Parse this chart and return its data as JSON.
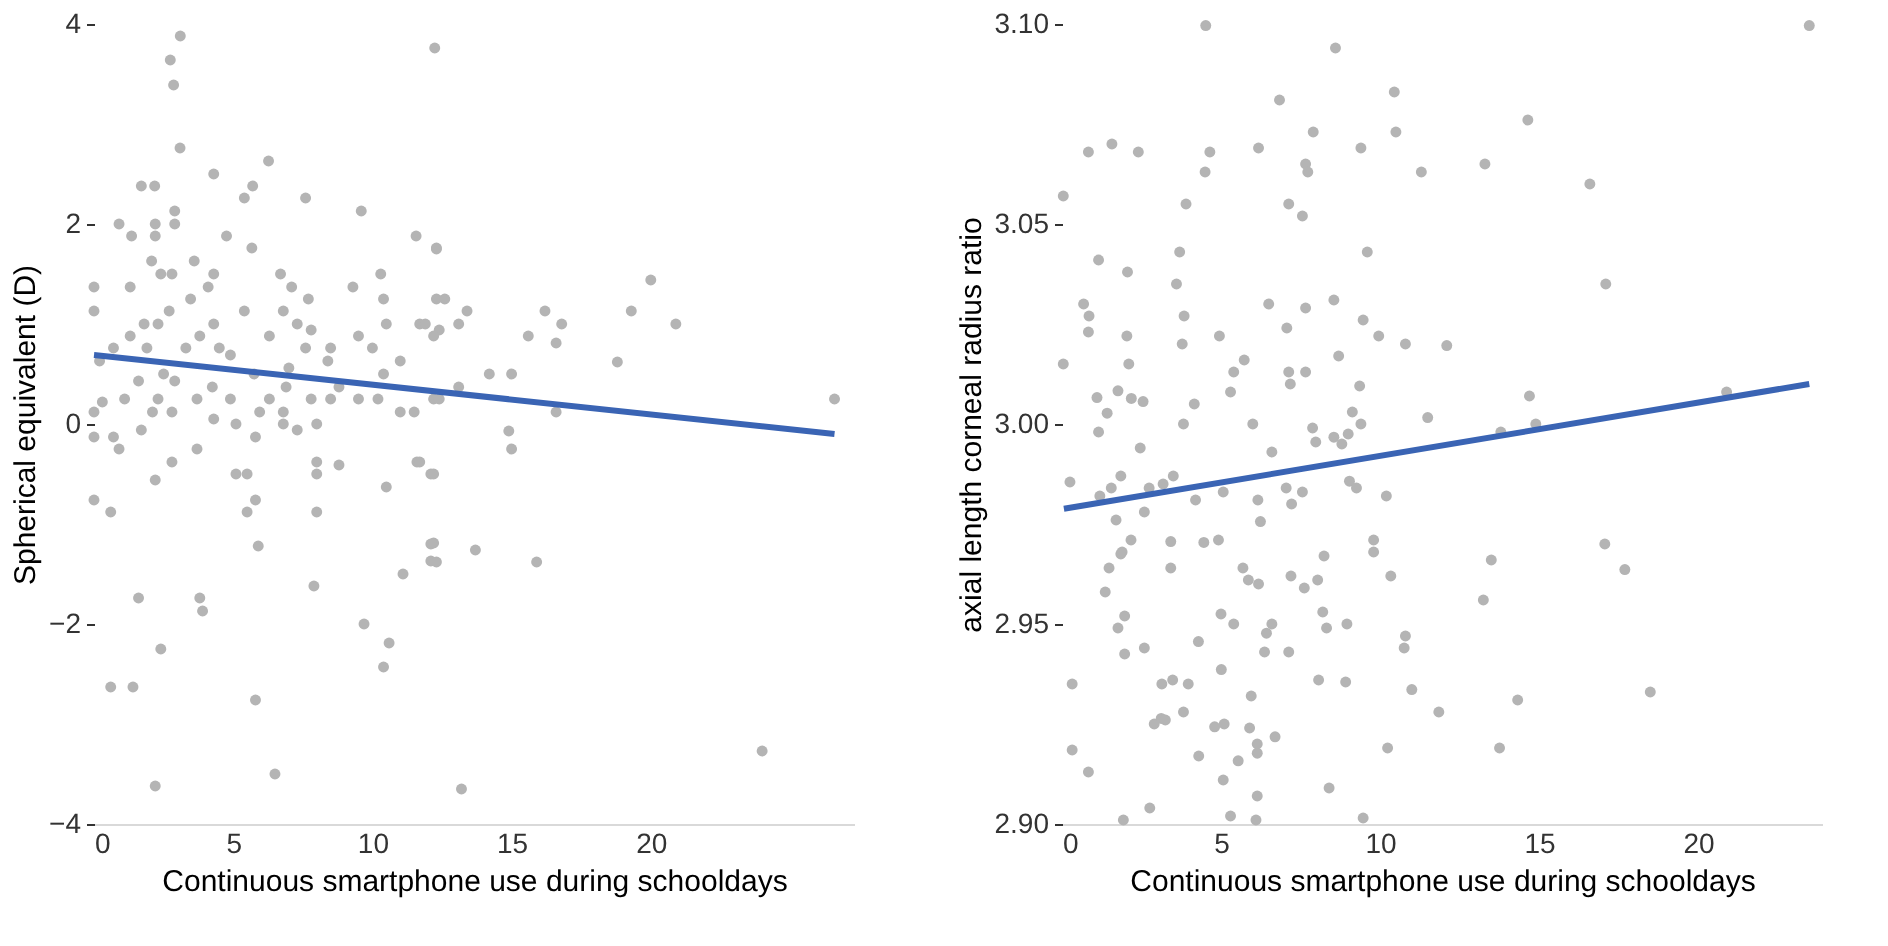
{
  "chart_data": [
    {
      "type": "scatter",
      "xlabel": "Continuous smartphone use during schooldays",
      "ylabel": "Spherical equivalent (D)",
      "xlim": [
        0,
        27.3
      ],
      "ylim": [
        -4,
        4
      ],
      "xticks": [
        0,
        5,
        10,
        15,
        20
      ],
      "yticks": [
        -4,
        -2,
        0,
        2,
        4
      ],
      "series": [
        {
          "type": "scatter",
          "marker": "circle",
          "color": "#b4b4b4",
          "x": [
            3.1,
            2.74,
            2.86,
            3.09,
            6.27,
            4.3,
            1.7,
            2.18,
            5.4,
            5.7,
            7.6,
            9.6,
            0.9,
            2.2,
            2.9,
            2.9,
            1.35,
            2.2,
            4.76,
            5.67,
            11.57,
            12.3,
            0,
            1.3,
            0,
            2.07,
            2.4,
            2.8,
            3.6,
            4.3,
            6.7,
            10.3,
            3.47,
            4.1,
            7.1,
            7.7,
            9.3,
            10.4,
            12.6,
            2.7,
            5.4,
            6.8,
            1.8,
            2.3,
            4.3,
            7.3,
            10.5,
            11.7,
            1.3,
            3.8,
            6.3,
            7.8,
            9.5,
            0.7,
            1.9,
            3.3,
            4.5,
            7.6,
            8.5,
            10.0,
            0.2,
            4.9,
            8.4,
            11.0,
            2.5,
            2.9,
            5.75,
            7.0,
            1.6,
            4.25,
            6.9,
            8.8,
            10.4,
            1.1,
            2.3,
            3.7,
            4.9,
            6.3,
            7.8,
            8.5,
            9.5,
            10.2,
            12.2,
            0,
            0.3,
            2.1,
            2.8,
            4.3,
            5.95,
            6.8,
            11.0,
            11.5,
            0,
            0.7,
            0.9,
            1.7,
            5.1,
            5.8,
            6.8,
            7.3,
            8.0,
            3.7,
            2.8,
            2.2,
            5.1,
            5.5,
            8.0,
            8.0,
            8.8,
            11.6,
            12.1,
            10.5,
            0,
            0.6,
            5.8,
            5.5,
            8.0,
            5.9,
            12.2,
            12.1,
            11.1,
            7.9,
            1.6,
            3.8,
            3.9,
            9.7,
            10.6,
            10.4,
            2.4,
            0.6,
            1.4,
            5.8,
            6.5,
            2.2,
            12.24,
            12.3,
            12.3,
            11.9,
            12.4,
            12.2,
            13.1,
            13.4,
            16.2,
            16.8,
            15.6,
            16.6,
            19.3,
            20.0,
            20.9,
            18.8,
            14.2,
            15.0,
            13.1,
            12.4,
            16.6,
            14.9,
            15.0,
            11.7,
            12.2,
            12.1,
            12.3,
            13.7,
            15.9,
            26.6,
            24.0,
            13.2
          ],
          "values": [
            3.88,
            3.64,
            3.39,
            2.76,
            2.63,
            2.5,
            2.38,
            2.38,
            2.26,
            2.38,
            2.26,
            2.13,
            2.0,
            2.0,
            2.13,
            2.0,
            1.88,
            1.88,
            1.88,
            1.76,
            1.88,
            1.76,
            1.37,
            1.37,
            1.13,
            1.63,
            1.5,
            1.5,
            1.63,
            1.5,
            1.5,
            1.5,
            1.25,
            1.37,
            1.37,
            1.25,
            1.37,
            1.25,
            1.25,
            1.13,
            1.13,
            1.13,
            1.0,
            1.0,
            1.0,
            1.0,
            1.0,
            1.0,
            0.88,
            0.88,
            0.88,
            0.94,
            0.88,
            0.76,
            0.76,
            0.76,
            0.76,
            0.76,
            0.76,
            0.76,
            0.63,
            0.69,
            0.63,
            0.63,
            0.5,
            0.43,
            0.5,
            0.56,
            0.43,
            0.37,
            0.37,
            0.37,
            0.5,
            0.25,
            0.25,
            0.25,
            0.25,
            0.25,
            0.25,
            0.25,
            0.25,
            0.25,
            0.25,
            0.12,
            0.22,
            0.12,
            0.12,
            0.05,
            0.12,
            0.12,
            0.12,
            0.12,
            -0.13,
            -0.13,
            -0.25,
            -0.06,
            0.0,
            -0.13,
            0.0,
            -0.06,
            0.0,
            -0.25,
            -0.38,
            -0.56,
            -0.5,
            -0.5,
            -0.5,
            -0.38,
            -0.41,
            -0.38,
            -0.5,
            -0.63,
            -0.76,
            -0.88,
            -0.76,
            -0.88,
            -0.88,
            -1.22,
            -1.19,
            -1.37,
            -1.5,
            -1.62,
            -1.74,
            -1.74,
            -1.87,
            -2.0,
            -2.19,
            -2.43,
            -2.25,
            -2.63,
            -2.63,
            -2.76,
            -3.5,
            -3.62,
            3.76,
            1.75,
            1.25,
            1.0,
            0.94,
            0.88,
            1.0,
            1.13,
            1.13,
            1.0,
            0.88,
            0.81,
            1.13,
            1.44,
            1.0,
            0.62,
            0.5,
            0.5,
            0.37,
            0.25,
            0.12,
            -0.07,
            -0.25,
            -0.38,
            -0.5,
            -1.2,
            -1.38,
            -1.26,
            -1.38,
            0.25,
            -3.27,
            -3.65
          ]
        },
        {
          "type": "line",
          "line_style": "solid",
          "color": "#3a64b4",
          "x": [
            0,
            26.6
          ],
          "values": [
            0.69,
            -0.1
          ]
        }
      ]
    },
    {
      "type": "scatter",
      "xlabel": "Continuous smartphone use during schooldays",
      "ylabel": "axial length corneal radius ratio",
      "xlim": [
        0,
        23.9
      ],
      "ylim": [
        2.9,
        3.1
      ],
      "xticks": [
        0,
        5,
        10,
        15,
        20
      ],
      "yticks": [
        {
          "value": 2.9,
          "label": "2.90"
        },
        2.95,
        {
          "value": 3.0,
          "label": "3.00"
        },
        3.05,
        {
          "value": 3.1,
          "label": "3.10"
        }
      ],
      "series": [
        {
          "type": "scatter",
          "marker": "circle",
          "color": "#b4b4b4",
          "x": [
            4.52,
            8.6,
            6.84,
            10.45,
            10.5,
            7.9,
            0.83,
            1.57,
            2.4,
            4.65,
            4.5,
            6.18,
            7.66,
            7.73,
            9.4,
            11.3,
            0.04,
            3.9,
            7.13,
            7.56,
            1.15,
            3.7,
            2.06,
            9.6,
            3.6,
            0.68,
            0.85,
            0.83,
            3.84,
            2.04,
            3.78,
            4.95,
            6.5,
            7.66,
            8.55,
            7.07,
            9.47,
            9.96,
            10.8,
            0.04,
            2.1,
            5.73,
            5.4,
            5.3,
            7.13,
            7.18,
            7.66,
            8.7,
            9.36,
            1.1,
            1.76,
            2.18,
            2.55,
            1.42,
            1.15,
            4.16,
            3.82,
            6.0,
            7.88,
            9.13,
            9.4,
            7.98,
            8.55,
            9.0,
            8.8,
            2.46,
            6.6,
            0.25,
            1.85,
            1.19,
            1.55,
            2.74,
            3.18,
            3.5,
            5.07,
            4.2,
            6.16,
            7.05,
            7.22,
            7.56,
            9.04,
            9.26,
            10.2,
            1.7,
            2.59,
            6.24,
            2.17,
            1.89,
            1.85,
            3.42,
            3.42,
            4.46,
            4.92,
            1.48,
            1.36,
            5.69,
            5.86,
            6.18,
            7.2,
            7.62,
            8.04,
            8.24,
            9.8,
            9.8,
            10.34,
            1.97,
            1.76,
            2.59,
            1.97,
            4.29,
            5.0,
            5.4,
            6.6,
            6.43,
            6.37,
            7.13,
            8.2,
            8.32,
            8.96,
            10.8,
            10.76,
            11.0,
            8.07,
            8.92,
            0.32,
            3.14,
            3.48,
            3.97,
            5.01,
            5.95,
            3.82,
            2.9,
            3.12,
            3.25,
            4.8,
            5.1,
            5.9,
            6.14,
            6.14,
            6.7,
            0.32,
            0.83,
            4.3,
            5.54,
            5.07,
            6.14,
            8.4,
            10.24,
            2.76,
            1.93,
            5.3,
            6.1,
            9.47,
            11.5,
            23.5,
            14.65,
            13.3,
            16.6,
            17.1,
            12.1,
            14.7,
            14.9,
            13.8,
            20.9,
            13.5,
            13.25,
            17.07,
            17.7,
            11.85,
            14.33,
            18.5,
            13.76
          ],
          "values": [
            3.0996,
            3.094,
            3.081,
            3.083,
            3.073,
            3.073,
            3.068,
            3.07,
            3.068,
            3.068,
            3.063,
            3.069,
            3.065,
            3.063,
            3.069,
            3.063,
            3.057,
            3.055,
            3.055,
            3.052,
            3.041,
            3.043,
            3.038,
            3.043,
            3.035,
            3.03,
            3.027,
            3.023,
            3.027,
            3.022,
            3.02,
            3.022,
            3.03,
            3.029,
            3.031,
            3.024,
            3.026,
            3.022,
            3.02,
            3.015,
            3.015,
            3.016,
            3.013,
            3.008,
            3.013,
            3.01,
            3.013,
            3.017,
            3.0095,
            3.0066,
            3.0083,
            3.0064,
            3.0056,
            3.0027,
            2.998,
            3.005,
            3.0,
            3.0,
            2.999,
            3.003,
            3.0,
            2.9955,
            2.9967,
            2.9975,
            2.995,
            2.994,
            2.993,
            2.9855,
            2.987,
            2.982,
            2.984,
            2.984,
            2.985,
            2.987,
            2.983,
            2.981,
            2.981,
            2.984,
            2.98,
            2.983,
            2.9857,
            2.984,
            2.982,
            2.976,
            2.978,
            2.9756,
            2.971,
            2.968,
            2.9675,
            2.9706,
            2.964,
            2.9704,
            2.971,
            2.964,
            2.958,
            2.964,
            2.961,
            2.96,
            2.962,
            2.959,
            2.961,
            2.967,
            2.971,
            2.968,
            2.962,
            2.952,
            2.949,
            2.944,
            2.9425,
            2.9456,
            2.9525,
            2.95,
            2.95,
            2.9477,
            2.943,
            2.943,
            2.953,
            2.949,
            2.95,
            2.947,
            2.944,
            2.9336,
            2.936,
            2.9355,
            2.935,
            2.935,
            2.936,
            2.935,
            2.9386,
            2.932,
            2.928,
            2.925,
            2.9264,
            2.926,
            2.9243,
            2.925,
            2.924,
            2.92,
            2.9177,
            2.9218,
            2.9185,
            2.913,
            2.917,
            2.9158,
            2.911,
            2.907,
            2.909,
            2.919,
            2.904,
            2.901,
            2.902,
            2.901,
            2.9015,
            3.0016,
            3.0996,
            3.076,
            3.065,
            3.06,
            3.035,
            3.0196,
            3.007,
            3.0,
            2.998,
            3.008,
            2.966,
            2.956,
            2.97,
            2.9636,
            2.928,
            2.931,
            2.933,
            2.919
          ]
        },
        {
          "type": "line",
          "line_style": "solid",
          "color": "#3a64b4",
          "x": [
            0.06,
            23.5
          ],
          "values": [
            2.9788,
            3.01
          ]
        }
      ]
    }
  ]
}
